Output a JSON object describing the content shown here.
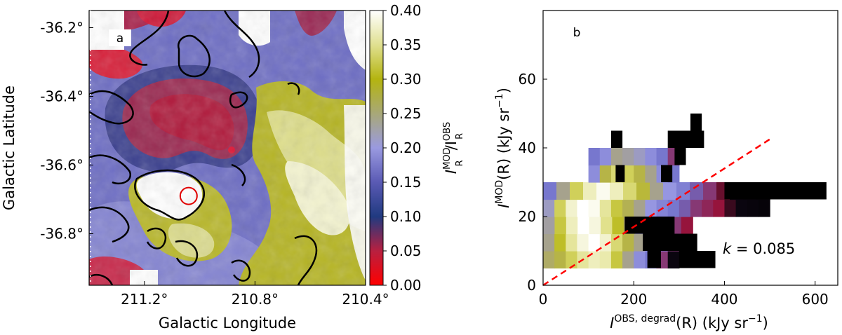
{
  "chart_data": [
    {
      "panel": "a",
      "type": "heatmap",
      "panel_label": "a",
      "xlabel": "Galactic Longitude",
      "ylabel": "Galactic Latitude",
      "xtick_labels": [
        "211.2°",
        "210.8°",
        "210.4°"
      ],
      "xtick_values": [
        211.2,
        210.8,
        210.4
      ],
      "ytick_labels": [
        "-36.2°",
        "-36.4°",
        "-36.6°",
        "-36.8°"
      ],
      "ytick_values": [
        -36.2,
        -36.4,
        -36.6,
        -36.8
      ],
      "xlim": [
        211.4,
        210.4
      ],
      "ylim": [
        -36.95,
        -36.15
      ],
      "colorbar": {
        "label_main": "I",
        "label_sup_1": "MOD",
        "label_mid": "/I",
        "label_sup_2": "OBS",
        "label_sub": "R",
        "range": [
          0.0,
          0.4
        ],
        "tick_labels": [
          "0.00",
          "0.05",
          "0.10",
          "0.15",
          "0.20",
          "0.25",
          "0.30",
          "0.35",
          "0.40"
        ],
        "tick_values": [
          0,
          0.05,
          0.1,
          0.15,
          0.2,
          0.25,
          0.3,
          0.35,
          0.4
        ],
        "colormap": [
          {
            "v": 0.0,
            "color": "#ff0000"
          },
          {
            "v": 0.05,
            "color": "#b82040"
          },
          {
            "v": 0.1,
            "color": "#203a80"
          },
          {
            "v": 0.15,
            "color": "#5a5ab4"
          },
          {
            "v": 0.2,
            "color": "#9a9ae0"
          },
          {
            "v": 0.25,
            "color": "#a8a878"
          },
          {
            "v": 0.3,
            "color": "#b4b410"
          },
          {
            "v": 0.35,
            "color": "#e0e090"
          },
          {
            "v": 0.4,
            "color": "#ffffff"
          }
        ]
      },
      "marker": {
        "type": "circle",
        "l": 211.04,
        "b": -36.69,
        "color": "#e00000"
      }
    },
    {
      "panel": "b",
      "type": "heatmap",
      "panel_label": "b",
      "xlabel": "I^{OBS, degrad}(R) (kJy sr^{-1})",
      "xlabel_main": "I",
      "xlabel_sup": "OBS, degrad",
      "xlabel_rest": "(R)  (kJy sr",
      "xlabel_unit_sup": "−1",
      "xlabel_close": ")",
      "ylabel_main": "I",
      "ylabel_sup": "MOD",
      "ylabel_rest": "(R)  (kJy sr",
      "ylabel_unit_sup": "−1",
      "ylabel_close": ")",
      "xlim": [
        0,
        650
      ],
      "ylim": [
        0,
        80
      ],
      "xtick_values": [
        0,
        200,
        400,
        600
      ],
      "xtick_labels": [
        "0",
        "200",
        "400",
        "600"
      ],
      "ytick_values": [
        0,
        20,
        40,
        60
      ],
      "ytick_labels": [
        "0",
        "20",
        "40",
        "60"
      ],
      "fit_line": {
        "slope_label": "k = 0.085",
        "k_symbol": "k",
        "k_value": "0.085",
        "x": [
          0,
          500
        ],
        "y": [
          0,
          42.5
        ],
        "color": "#ff0000",
        "style": "dashed"
      },
      "bins": [
        {
          "x0": 0,
          "y0": 5,
          "dx": 300,
          "dy": 5,
          "counts": [
            0.35,
            0.4,
            0.55,
            0.7,
            0.8,
            0.75,
            0.5,
            0.3,
            0.2,
            0.15,
            0.1,
            0.05
          ]
        },
        {
          "x0": 0,
          "y0": 10,
          "dx": 300,
          "dy": 5,
          "counts": [
            0.3,
            0.45,
            0.7,
            0.9,
            1.0,
            0.85,
            0.6,
            0.4,
            0.3,
            0.2,
            0.15,
            0.1
          ]
        },
        {
          "x0": 0,
          "y0": 15,
          "dx": 330,
          "dy": 5,
          "counts": [
            0.28,
            0.5,
            0.8,
            1.0,
            0.9,
            0.65,
            0.45,
            0.35,
            0.25,
            0.2,
            0.15,
            0.1,
            0.08
          ]
        },
        {
          "x0": 0,
          "y0": 20,
          "dx": 500,
          "dy": 5,
          "counts": [
            0.25,
            0.55,
            0.85,
            1.0,
            0.95,
            0.7,
            0.5,
            0.38,
            0.3,
            0.22,
            0.18,
            0.15,
            0.12,
            0.1,
            0.09,
            0.08,
            0.06,
            0.05,
            0.04,
            0.03
          ]
        },
        {
          "x0": 0,
          "y0": 25,
          "dx": 500,
          "dy": 5,
          "counts": [
            0.15,
            0.3,
            0.55,
            0.8,
            0.95,
            0.8,
            0.6,
            0.42,
            0.3,
            0.22,
            0.17,
            0.12,
            0.1,
            0.07,
            0.05,
            0.04,
            0.03
          ]
        },
        {
          "x0": 100,
          "y0": 30,
          "dx": 200,
          "dy": 5,
          "counts": [
            0.2,
            0.4,
            0.6,
            0.55,
            0.4,
            0.3,
            0.2,
            0.15
          ]
        },
        {
          "x0": 100,
          "y0": 35,
          "dx": 200,
          "dy": 5,
          "counts": [
            0.15,
            0.2,
            0.3,
            0.28,
            0.25,
            0.2,
            0.15,
            0.1
          ]
        }
      ]
    }
  ]
}
